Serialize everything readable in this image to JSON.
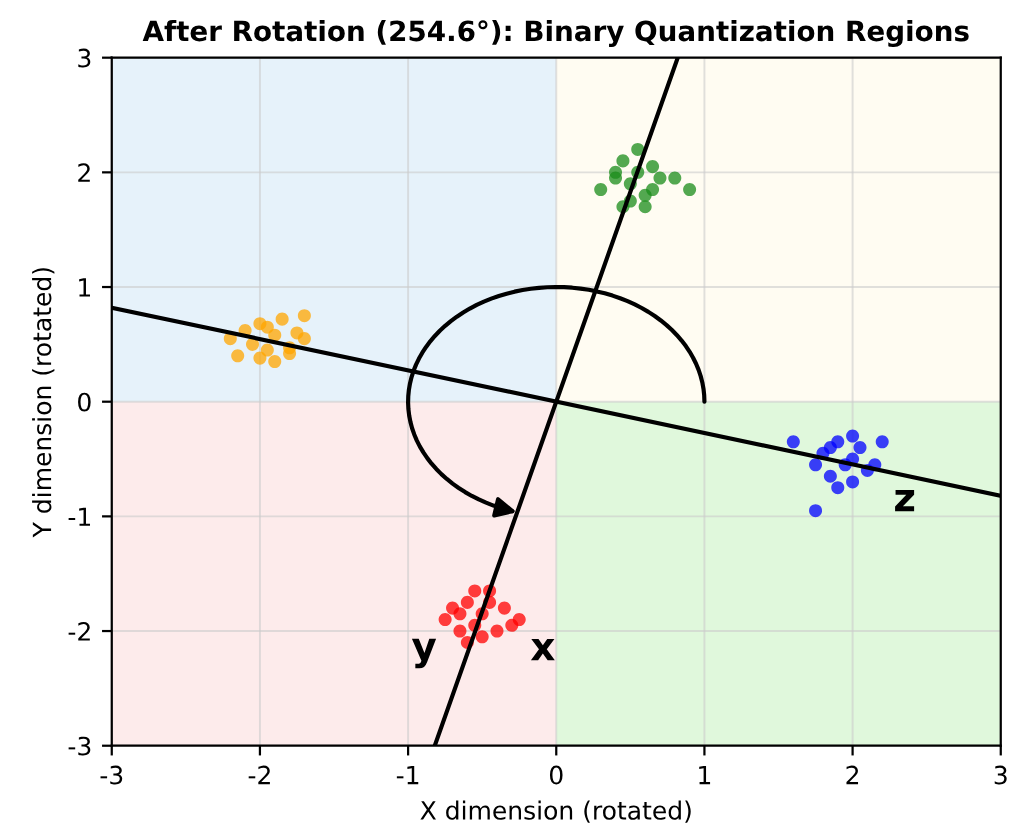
{
  "chart_data": {
    "type": "scatter",
    "title": "After Rotation (254.6°): Binary Quantization Regions",
    "xlabel": "X dimension (rotated)",
    "ylabel": "Y dimension (rotated)",
    "xlim": [
      -3,
      3
    ],
    "ylim": [
      -3,
      3
    ],
    "xticks": [
      -3,
      -2,
      -1,
      0,
      1,
      2,
      3
    ],
    "yticks": [
      -3,
      -2,
      -1,
      0,
      1,
      2,
      3
    ],
    "grid": true,
    "series": [
      {
        "marker": "circle",
        "color": "#ffa500",
        "x": [
          -2.2,
          -2.1,
          -2.05,
          -2.0,
          -1.95,
          -1.9,
          -1.85,
          -1.8,
          -1.75,
          -1.7,
          -2.0,
          -1.9,
          -1.8,
          -2.15,
          -1.7,
          -1.95
        ],
        "values": [
          0.55,
          0.62,
          0.5,
          0.68,
          0.45,
          0.58,
          0.72,
          0.42,
          0.6,
          0.75,
          0.38,
          0.35,
          0.47,
          0.4,
          0.55,
          0.65
        ]
      },
      {
        "marker": "circle",
        "color": "#1a8c1a",
        "x": [
          0.3,
          0.4,
          0.45,
          0.5,
          0.55,
          0.6,
          0.65,
          0.7,
          0.8,
          0.5,
          0.6,
          0.4,
          0.55,
          0.65,
          0.9,
          0.45
        ],
        "values": [
          1.85,
          1.95,
          2.1,
          1.9,
          2.2,
          1.8,
          2.05,
          1.95,
          1.95,
          1.75,
          1.7,
          2.0,
          2.0,
          1.85,
          1.85,
          1.7
        ]
      },
      {
        "marker": "circle",
        "color": "#0000ff",
        "x": [
          1.6,
          1.75,
          1.8,
          1.85,
          1.9,
          1.95,
          2.0,
          2.05,
          2.1,
          2.2,
          1.75,
          1.9,
          2.0,
          1.85,
          2.15,
          2.0
        ],
        "values": [
          -0.35,
          -0.55,
          -0.45,
          -0.65,
          -0.35,
          -0.55,
          -0.5,
          -0.4,
          -0.6,
          -0.35,
          -0.95,
          -0.75,
          -0.7,
          -0.4,
          -0.55,
          -0.3
        ]
      },
      {
        "marker": "circle",
        "color": "#ff0000",
        "x": [
          -0.75,
          -0.7,
          -0.65,
          -0.6,
          -0.55,
          -0.5,
          -0.45,
          -0.4,
          -0.35,
          -0.25,
          -0.6,
          -0.5,
          -0.45,
          -0.3,
          -0.65,
          -0.55
        ],
        "values": [
          -1.9,
          -1.8,
          -2.0,
          -1.75,
          -1.95,
          -1.85,
          -1.65,
          -2.0,
          -1.8,
          -1.9,
          -2.1,
          -2.05,
          -1.75,
          -1.95,
          -1.85,
          -1.65
        ]
      },
      {
        "type": "line",
        "marker": "none",
        "color": "#000000",
        "x": [
          -3,
          3
        ],
        "values": [
          0.82,
          -0.82
        ]
      },
      {
        "type": "line",
        "marker": "none",
        "color": "#000000",
        "x": [
          -0.82,
          0.82
        ],
        "values": [
          -3,
          3
        ]
      }
    ],
    "annotations": [
      {
        "text": "z",
        "x": 2.2,
        "y": -0.6
      },
      {
        "text": "x",
        "x": -0.25,
        "y": -1.9
      },
      {
        "text": "y",
        "x": -0.75,
        "y": -1.9
      }
    ]
  }
}
